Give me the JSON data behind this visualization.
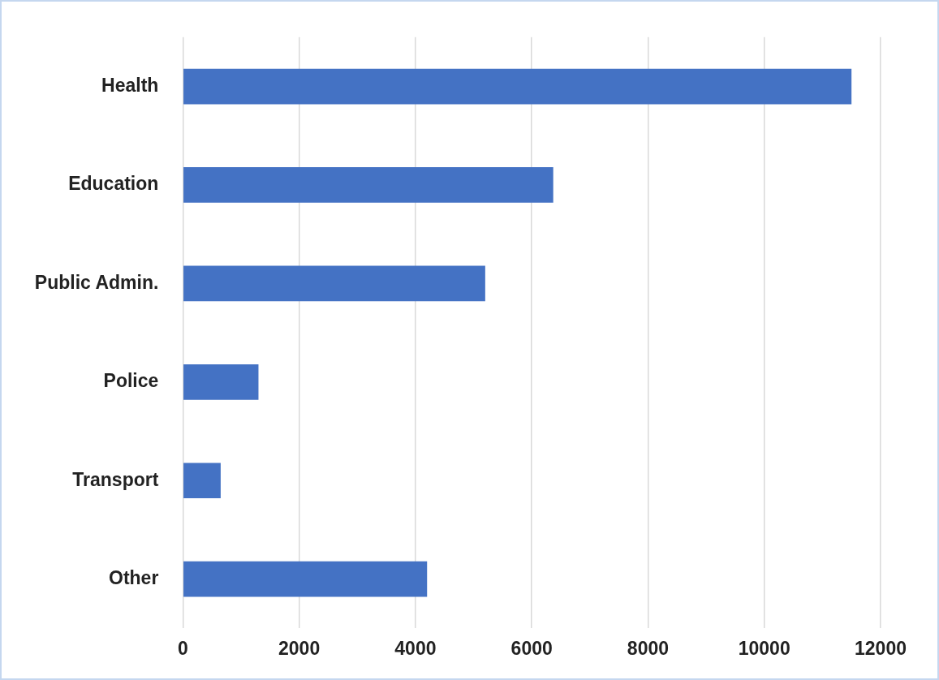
{
  "chart_data": {
    "type": "bar",
    "orientation": "horizontal",
    "categories": [
      "Health",
      "Education",
      "Public Admin.",
      "Police",
      "Transport",
      "Other"
    ],
    "values": [
      11500,
      6370,
      5200,
      1300,
      650,
      4200
    ],
    "color": "#4472c4",
    "xlim": [
      0,
      12000
    ],
    "xticks": [
      0,
      2000,
      4000,
      6000,
      8000,
      10000,
      12000
    ],
    "grid": "x"
  }
}
